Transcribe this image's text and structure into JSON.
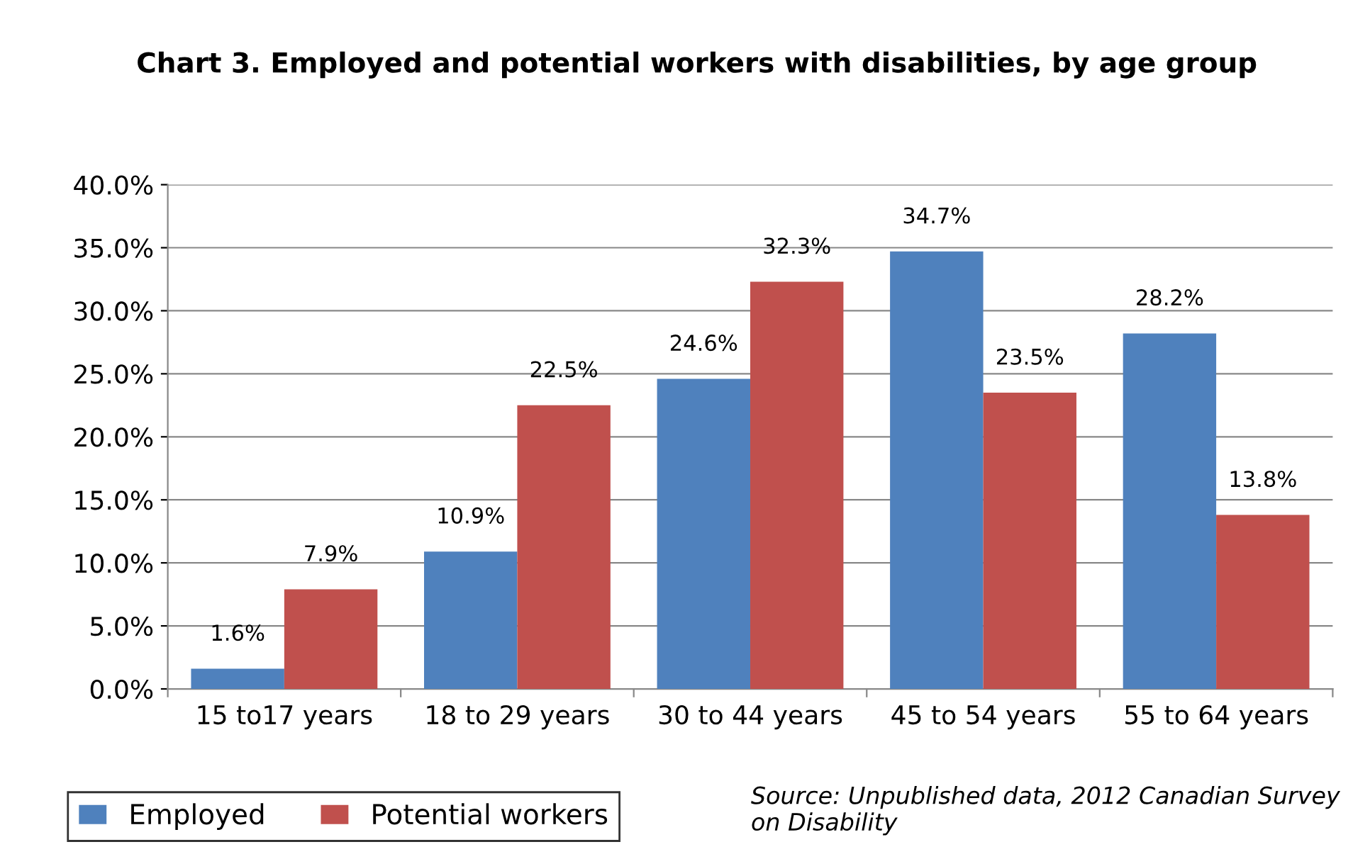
{
  "chart_data": {
    "type": "bar",
    "title": "Chart 3. Employed and potential workers with disabilities, by age group",
    "categories": [
      "15 to17 years",
      "18 to 29 years",
      "30 to 44 years",
      "45 to 54 years",
      "55 to 64 years"
    ],
    "series": [
      {
        "name": "Employed",
        "color": "#4f81bd",
        "values": [
          1.6,
          10.9,
          24.6,
          34.7,
          28.2
        ],
        "value_labels": [
          "1.6%",
          "10.9%",
          "24.6%",
          "34.7%",
          "28.2%"
        ]
      },
      {
        "name": "Potential workers",
        "color": "#c0504d",
        "values": [
          7.9,
          22.5,
          32.3,
          23.5,
          13.8
        ],
        "value_labels": [
          "7.9%",
          "22.5%",
          "32.3%",
          "23.5%",
          "13.8%"
        ]
      }
    ],
    "ylim": [
      0,
      40
    ],
    "yticks": [
      {
        "value": 0,
        "label": "0.0%"
      },
      {
        "value": 5,
        "label": "5.0%"
      },
      {
        "value": 10,
        "label": "10.0%"
      },
      {
        "value": 15,
        "label": "15.0%"
      },
      {
        "value": 20,
        "label": "20.0%"
      },
      {
        "value": 25,
        "label": "25.0%"
      },
      {
        "value": 30,
        "label": "30.0%"
      },
      {
        "value": 35,
        "label": "35.0%"
      },
      {
        "value": 40,
        "label": "40.0%"
      }
    ],
    "grid": "y",
    "legend": "bottom left",
    "annotations": [
      "Source: Unpublished data, 2012 Canadian Survey on Disability"
    ]
  }
}
